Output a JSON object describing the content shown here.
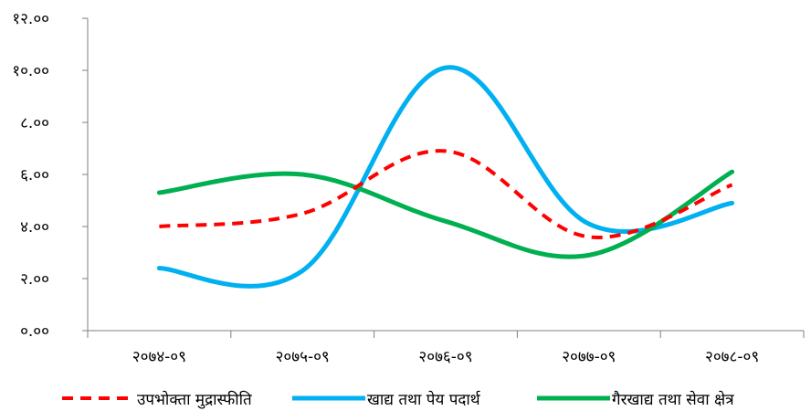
{
  "chart_data": {
    "type": "line",
    "categories": [
      "२०७४-०९",
      "२०७५-०९",
      "२०७६-०९",
      "२०७७-०९",
      "२०७८-०९"
    ],
    "y_tick_labels": [
      "०.००",
      "२.००",
      "४.००",
      "६.००",
      "८.००",
      "१०.००",
      "१२.००"
    ],
    "ylim": [
      0,
      12
    ],
    "grid": false,
    "legend_position": "bottom",
    "series": [
      {
        "name": "उपभोक्ता मुद्रास्फीति",
        "values": [
          4.0,
          4.5,
          6.9,
          3.6,
          5.6
        ],
        "color": "#ff0000",
        "dashed": true
      },
      {
        "name": "खाद्य तथा पेय पदार्थ",
        "values": [
          2.4,
          2.3,
          10.1,
          4.1,
          4.9
        ],
        "color": "#00b0f0",
        "dashed": false
      },
      {
        "name": "गैरखाद्य तथा सेवा क्षेत्र",
        "values": [
          5.3,
          6.0,
          4.2,
          2.9,
          6.1
        ],
        "color": "#00b050",
        "dashed": false
      }
    ]
  }
}
